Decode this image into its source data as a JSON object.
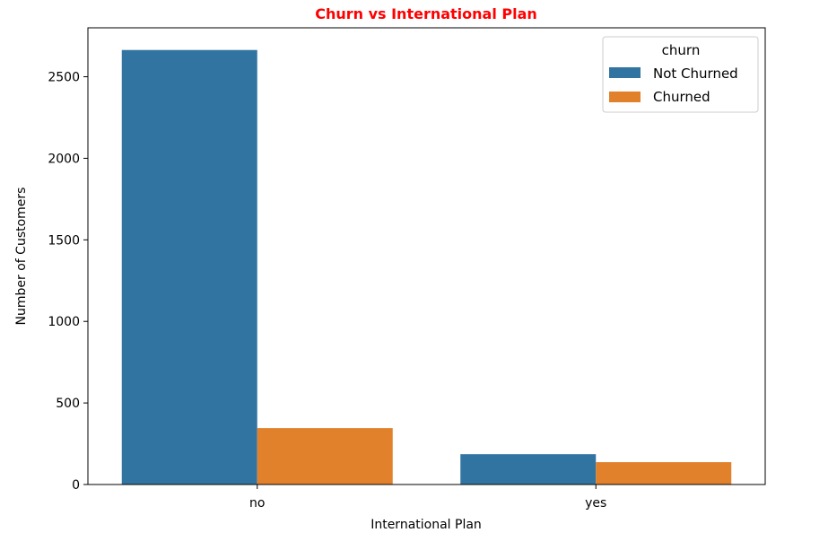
{
  "colors": {
    "title": "#ff0000",
    "axes": "#000000",
    "not_churned": "#3274a1",
    "churned": "#e1812c"
  },
  "chart_data": {
    "type": "bar",
    "title": "Churn vs International Plan",
    "xlabel": "International Plan",
    "ylabel": "Number of Customers",
    "categories": [
      "no",
      "yes"
    ],
    "series": [
      {
        "name": "Not Churned",
        "color": "#3274a1",
        "values": [
          2664,
          186
        ]
      },
      {
        "name": "Churned",
        "color": "#e1812c",
        "values": [
          346,
          137
        ]
      }
    ],
    "ylim": [
      0,
      2800
    ],
    "yticks": [
      0,
      500,
      1000,
      1500,
      2000,
      2500
    ],
    "grid": false,
    "legend": {
      "title": "churn",
      "placement": "top-right"
    }
  }
}
